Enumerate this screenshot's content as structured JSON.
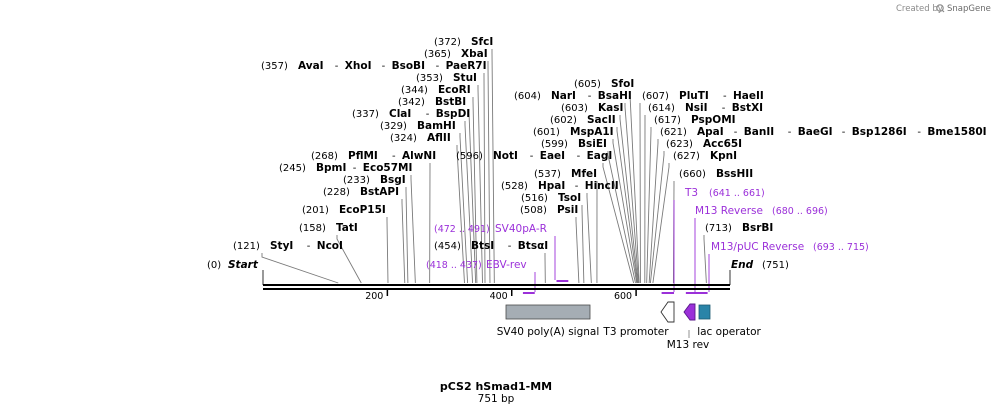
{
  "credit": {
    "prefix": "Created by",
    "brand": "SnapGene"
  },
  "map": {
    "title": "pCS2 hSmad1-MM",
    "length_label": "751 bp",
    "start": {
      "pos": "(0)",
      "label": "Start"
    },
    "end": {
      "label": "End",
      "pos": "(751)"
    },
    "ticks": [
      {
        "label": "200",
        "bp": 200
      },
      {
        "label": "400",
        "bp": 400
      },
      {
        "label": "600",
        "bp": 600
      }
    ]
  },
  "enzymes": [
    {
      "pos": "(121)",
      "names": [
        "StyI",
        "NcoI"
      ],
      "bp": 121
    },
    {
      "pos": "(158)",
      "names": [
        "TatI"
      ],
      "bp": 158
    },
    {
      "pos": "(201)",
      "names": [
        "EcoP15I"
      ],
      "bp": 201
    },
    {
      "pos": "(228)",
      "names": [
        "BstAPI"
      ],
      "bp": 228
    },
    {
      "pos": "(233)",
      "names": [
        "BsgI"
      ],
      "bp": 233
    },
    {
      "pos": "(245)",
      "names": [
        "BpmI",
        "Eco57MI"
      ],
      "bp": 245
    },
    {
      "pos": "(268)",
      "names": [
        "PflMI",
        "AlwNI"
      ],
      "bp": 268
    },
    {
      "pos": "(324)",
      "names": [
        "AflII"
      ],
      "bp": 324
    },
    {
      "pos": "(329)",
      "names": [
        "BamHI"
      ],
      "bp": 329
    },
    {
      "pos": "(337)",
      "names": [
        "ClaI",
        "BspDI"
      ],
      "bp": 337
    },
    {
      "pos": "(342)",
      "names": [
        "BstBI"
      ],
      "bp": 342
    },
    {
      "pos": "(344)",
      "names": [
        "EcoRI"
      ],
      "bp": 344
    },
    {
      "pos": "(353)",
      "names": [
        "StuI"
      ],
      "bp": 353
    },
    {
      "pos": "(357)",
      "names": [
        "AvaI",
        "XhoI",
        "BsoBI",
        "PaeR7I"
      ],
      "bp": 357
    },
    {
      "pos": "(365)",
      "names": [
        "XbaI"
      ],
      "bp": 365
    },
    {
      "pos": "(372)",
      "names": [
        "SfcI"
      ],
      "bp": 372
    },
    {
      "pos": "(454)",
      "names": [
        "BtsI",
        "BtsαI"
      ],
      "bp": 454
    },
    {
      "pos": "(508)",
      "names": [
        "PsiI"
      ],
      "bp": 508
    },
    {
      "pos": "(516)",
      "names": [
        "TsoI"
      ],
      "bp": 516
    },
    {
      "pos": "(528)",
      "names": [
        "HpaI",
        "HincII"
      ],
      "bp": 528
    },
    {
      "pos": "(537)",
      "names": [
        "MfeI"
      ],
      "bp": 537
    },
    {
      "pos": "(596)",
      "names": [
        "NotI",
        "EaeI",
        "EagI"
      ],
      "bp": 596
    },
    {
      "pos": "(599)",
      "names": [
        "BsiEI"
      ],
      "bp": 599
    },
    {
      "pos": "(601)",
      "names": [
        "MspA1I"
      ],
      "bp": 601
    },
    {
      "pos": "(602)",
      "names": [
        "SacII"
      ],
      "bp": 602
    },
    {
      "pos": "(603)",
      "names": [
        "KasI"
      ],
      "bp": 603
    },
    {
      "pos": "(604)",
      "names": [
        "NarI",
        "BsaHI"
      ],
      "bp": 604
    },
    {
      "pos": "(605)",
      "names": [
        "SfoI"
      ],
      "bp": 605
    },
    {
      "pos": "(607)",
      "names": [
        "PluTI",
        "HaeII"
      ],
      "bp": 607
    },
    {
      "pos": "(614)",
      "names": [
        "NsiI",
        "BstXI"
      ],
      "bp": 614
    },
    {
      "pos": "(617)",
      "names": [
        "PspOMI"
      ],
      "bp": 617
    },
    {
      "pos": "(621)",
      "names": [
        "ApaI",
        "BanII",
        "BaeGI",
        "Bsp1286I",
        "Bme1580I"
      ],
      "bp": 621
    },
    {
      "pos": "(623)",
      "names": [
        "Acc65I"
      ],
      "bp": 623
    },
    {
      "pos": "(627)",
      "names": [
        "KpnI"
      ],
      "bp": 627
    },
    {
      "pos": "(660)",
      "names": [
        "BssHII"
      ],
      "bp": 660
    },
    {
      "pos": "(713)",
      "names": [
        "BsrBI"
      ],
      "bp": 713
    }
  ],
  "primers": [
    {
      "name": "EBV-rev",
      "pos": "(418 .. 437)",
      "start": 418,
      "end": 437
    },
    {
      "name": "SV40pA-R",
      "pos": "(472 .. 491)",
      "start": 472,
      "end": 491
    },
    {
      "name": "T3",
      "pos": "(641 .. 661)",
      "start": 641,
      "end": 661
    },
    {
      "name": "M13 Reverse",
      "pos": "(680 .. 696)",
      "start": 680,
      "end": 696
    },
    {
      "name": "M13/pUC Reverse",
      "pos": "(693 .. 715)",
      "start": 693,
      "end": 715
    }
  ],
  "features": [
    {
      "name": "SV40 poly(A) signal",
      "start": 425,
      "end": 560,
      "color": "#a5adb4"
    },
    {
      "name": "T3 promoter",
      "start": 641,
      "end": 659,
      "color": "#ffffff"
    },
    {
      "name": "M13 rev",
      "start": 680,
      "end": 696,
      "color": "#9b30d9"
    },
    {
      "name": "lac operator",
      "start": 702,
      "end": 718,
      "color": "#2a84a8"
    }
  ]
}
